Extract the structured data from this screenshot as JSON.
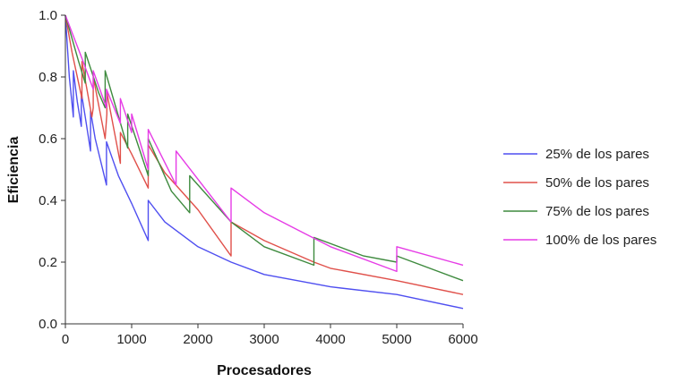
{
  "chart_data": {
    "type": "line",
    "title": "",
    "xlabel": "Procesadores",
    "ylabel": "Eficiencia",
    "xlim": [
      0,
      6000
    ],
    "ylim": [
      0,
      1.0
    ],
    "x_ticks": [
      "0",
      "1000",
      "2000",
      "3000",
      "4000",
      "5000",
      "6000"
    ],
    "y_ticks": [
      "0.0",
      "0.2",
      "0.4",
      "0.6",
      "0.8",
      "1.0"
    ],
    "grid": false,
    "legend_position": "right",
    "series": [
      {
        "name": "25% de los pares",
        "color": "#4f4ff0",
        "x": [
          0,
          60,
          120,
          120,
          180,
          240,
          240,
          300,
          380,
          380,
          450,
          620,
          620,
          800,
          1000,
          1250,
          1250,
          1500,
          2000,
          2500,
          3000,
          4000,
          5000,
          6000
        ],
        "y": [
          1.0,
          0.8,
          0.67,
          0.82,
          0.72,
          0.64,
          0.75,
          0.67,
          0.56,
          0.69,
          0.6,
          0.45,
          0.59,
          0.48,
          0.39,
          0.27,
          0.4,
          0.33,
          0.25,
          0.2,
          0.16,
          0.12,
          0.095,
          0.05
        ]
      },
      {
        "name": "50% de los pares",
        "color": "#e0504a",
        "x": [
          0,
          100,
          250,
          250,
          400,
          420,
          420,
          600,
          625,
          625,
          830,
          830,
          1000,
          1250,
          1250,
          1500,
          2000,
          2500,
          2500,
          3000,
          3750,
          4000,
          5000,
          6000
        ],
        "y": [
          1.0,
          0.88,
          0.73,
          0.85,
          0.67,
          0.7,
          0.8,
          0.6,
          0.68,
          0.75,
          0.52,
          0.62,
          0.55,
          0.44,
          0.58,
          0.49,
          0.37,
          0.22,
          0.33,
          0.27,
          0.2,
          0.18,
          0.14,
          0.095
        ]
      },
      {
        "name": "75% de los pares",
        "color": "#3e8a3e",
        "x": [
          0,
          200,
          300,
          300,
          500,
          600,
          600,
          940,
          940,
          1250,
          1250,
          1600,
          1875,
          1875,
          2500,
          3000,
          3750,
          3750,
          4500,
          5000,
          5000,
          6000
        ],
        "y": [
          1.0,
          0.85,
          0.78,
          0.88,
          0.75,
          0.7,
          0.82,
          0.57,
          0.68,
          0.48,
          0.6,
          0.43,
          0.36,
          0.48,
          0.33,
          0.25,
          0.19,
          0.28,
          0.22,
          0.2,
          0.22,
          0.14
        ]
      },
      {
        "name": "100% de los pares",
        "color": "#e63ce6",
        "x": [
          0,
          250,
          420,
          420,
          620,
          620,
          830,
          830,
          1000,
          1000,
          1250,
          1250,
          1670,
          1670,
          2500,
          2500,
          3000,
          4000,
          5000,
          5000,
          6000
        ],
        "y": [
          1.0,
          0.86,
          0.76,
          0.82,
          0.7,
          0.76,
          0.65,
          0.73,
          0.62,
          0.68,
          0.5,
          0.63,
          0.45,
          0.56,
          0.33,
          0.44,
          0.36,
          0.25,
          0.17,
          0.25,
          0.19
        ]
      }
    ]
  }
}
